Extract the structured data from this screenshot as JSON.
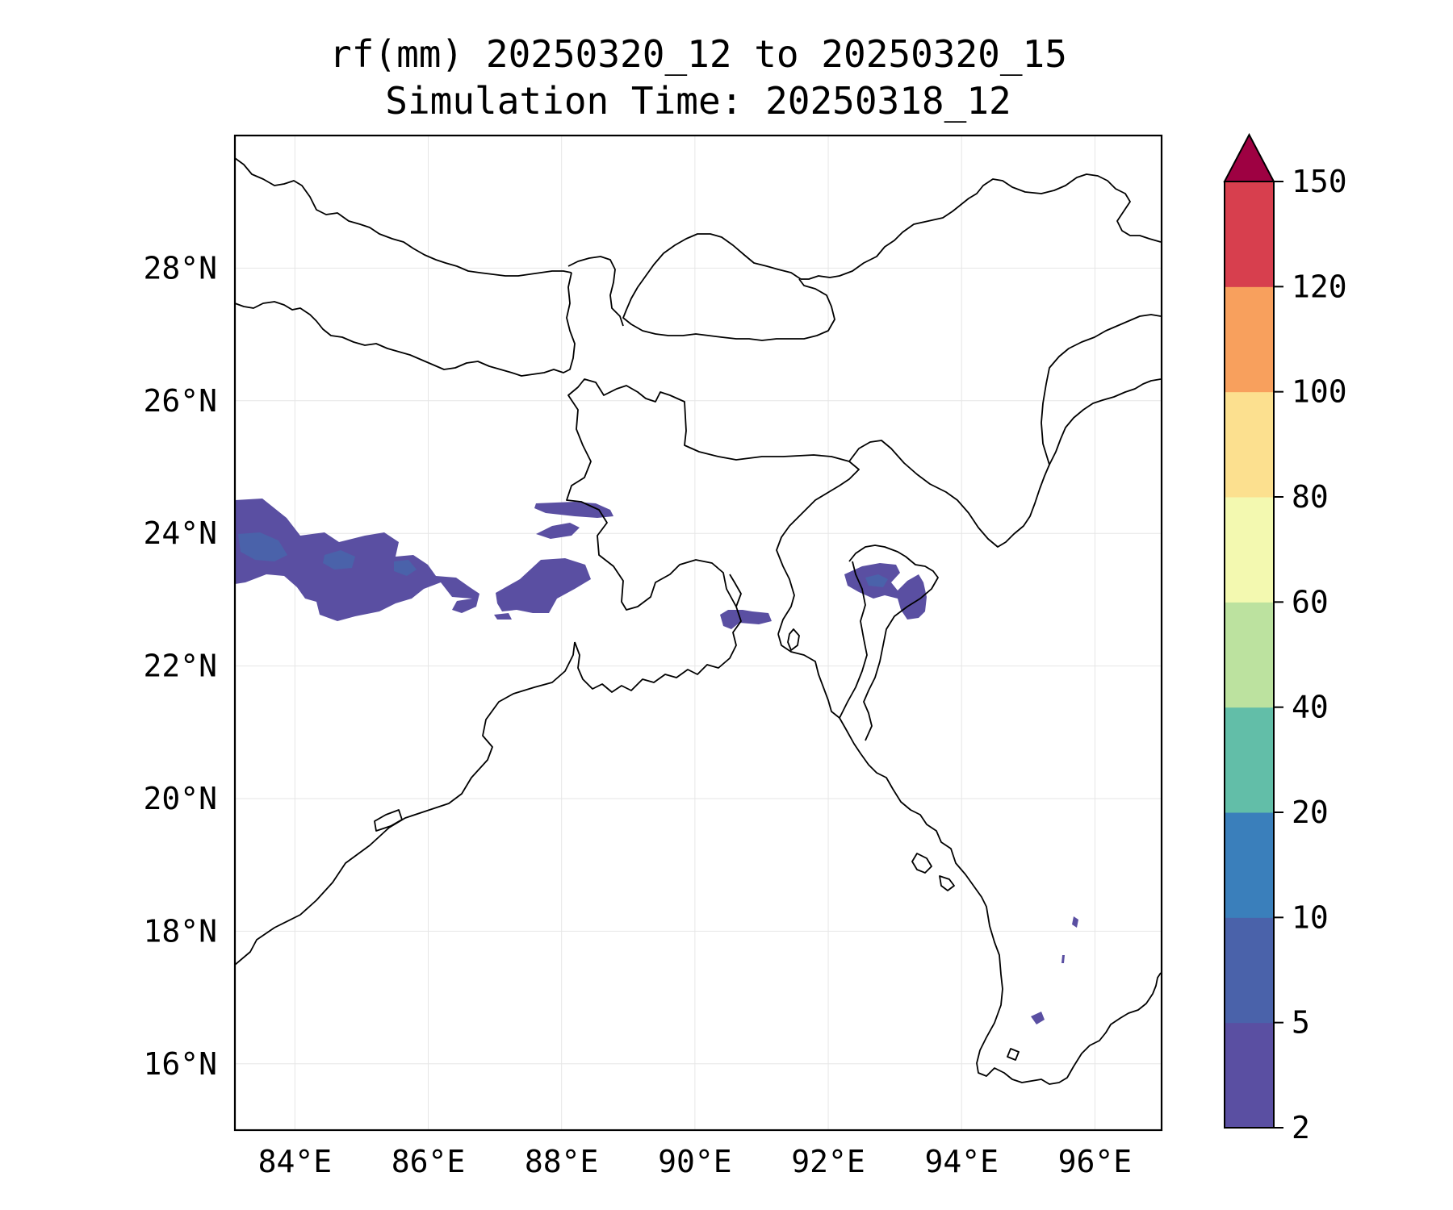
{
  "title": {
    "line1": "rf(mm) 20250320_12 to 20250320_15",
    "line2": "Simulation Time: 20250318_12"
  },
  "map": {
    "lon_range": [
      83.1,
      97.0
    ],
    "lat_range": [
      15.0,
      30.0
    ],
    "lon_ticks": [
      "84°E",
      "86°E",
      "88°E",
      "90°E",
      "92°E",
      "94°E",
      "96°E"
    ],
    "lat_ticks": [
      "16°N",
      "18°N",
      "20°N",
      "22°N",
      "24°N",
      "26°N",
      "28°N"
    ],
    "gridlines": true
  },
  "colorbar": {
    "levels": [
      "2",
      "5",
      "10",
      "20",
      "40",
      "60",
      "80",
      "100",
      "120",
      "150"
    ],
    "colors": [
      "#5a4fa2",
      "#4a62aa",
      "#3a7fbb",
      "#62bea8",
      "#bce29f",
      "#f3f9b0",
      "#fce08f",
      "#f8a05d",
      "#d73f4e"
    ],
    "extend_color": "#9e0142",
    "extend": "max"
  },
  "rain_colors": {
    "light": "#5a4fa2",
    "medium": "#4a62aa"
  }
}
